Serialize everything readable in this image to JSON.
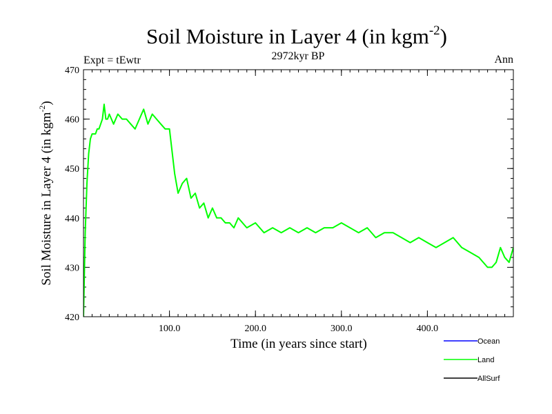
{
  "chart_data": {
    "type": "line",
    "title": "Soil Moisture in Layer 4 (in kgm",
    "title_superscript": "-2",
    "title_suffix": ")",
    "subtitle": "2972kyr BP",
    "left_label": "Expt = tEwtr",
    "right_label": "Ann",
    "xlabel": "Time (in years since start)",
    "ylabel": "Soil Moisture in Layer 4 (in kgm",
    "ylabel_superscript": "-2",
    "ylabel_suffix": ")",
    "xlim": [
      0,
      500
    ],
    "ylim": [
      420,
      470
    ],
    "x_ticks": [
      {
        "value": 100,
        "label": "100.0"
      },
      {
        "value": 200,
        "label": "200.0"
      },
      {
        "value": 300,
        "label": "300.0"
      },
      {
        "value": 400,
        "label": "400.0"
      }
    ],
    "x_minor_step": 10,
    "y_ticks": [
      420,
      430,
      440,
      450,
      460,
      470
    ],
    "y_minor_step": 2,
    "legend": [
      {
        "name": "Ocean",
        "color": "#0000ff"
      },
      {
        "name": "Land",
        "color": "#00ff00"
      },
      {
        "name": "AllSurf",
        "color": "#000000"
      }
    ],
    "series": [
      {
        "name": "Land",
        "color": "#00ff00",
        "x": [
          0,
          2,
          4,
          6,
          8,
          10,
          12,
          14,
          16,
          18,
          20,
          22,
          24,
          26,
          28,
          30,
          35,
          40,
          45,
          50,
          55,
          60,
          65,
          70,
          75,
          80,
          85,
          90,
          95,
          100,
          102,
          104,
          106,
          108,
          110,
          115,
          120,
          125,
          130,
          135,
          140,
          145,
          150,
          155,
          160,
          165,
          170,
          175,
          180,
          190,
          200,
          210,
          220,
          230,
          240,
          250,
          260,
          270,
          280,
          290,
          300,
          310,
          320,
          330,
          340,
          350,
          360,
          370,
          380,
          390,
          400,
          410,
          420,
          430,
          440,
          450,
          460,
          470,
          475,
          480,
          485,
          490,
          495,
          500
        ],
        "values": [
          420,
          437,
          447,
          453,
          456,
          457,
          457,
          457,
          458,
          458,
          459,
          460,
          463,
          460,
          460,
          461,
          459,
          461,
          460,
          460,
          459,
          458,
          460,
          462,
          459,
          461,
          460,
          459,
          458,
          458,
          455,
          452,
          449,
          447,
          445,
          447,
          448,
          444,
          445,
          442,
          443,
          440,
          442,
          440,
          440,
          439,
          439,
          438,
          440,
          438,
          439,
          437,
          438,
          437,
          438,
          437,
          438,
          437,
          438,
          438,
          439,
          438,
          437,
          438,
          436,
          437,
          437,
          436,
          435,
          436,
          435,
          434,
          435,
          436,
          434,
          433,
          432,
          430,
          430,
          431,
          434,
          432,
          431,
          434
        ]
      }
    ]
  }
}
